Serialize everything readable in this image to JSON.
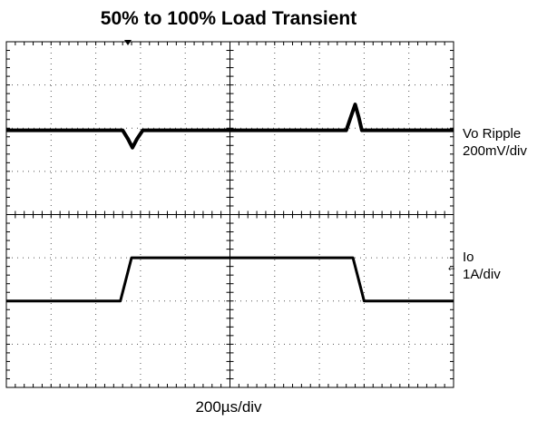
{
  "chart_data": {
    "type": "line",
    "title": "50% to 100% Load Transient",
    "xlabel": "200µs/div",
    "grid": true,
    "divisions": {
      "x": 10,
      "y": 8
    },
    "xlim": [
      0,
      10
    ],
    "ylim": [
      0,
      8
    ],
    "series": [
      {
        "name": "Vo Ripple",
        "scale_label": "200mV/div",
        "x": [
          0,
          2.6,
          2.72,
          2.82,
          2.92,
          3.05,
          3.2,
          7.6,
          7.7,
          7.8,
          7.88,
          7.95,
          8.05,
          10
        ],
        "y": [
          5.95,
          5.95,
          5.75,
          5.55,
          5.75,
          5.95,
          5.95,
          5.95,
          6.25,
          6.55,
          6.25,
          5.95,
          5.95,
          5.95
        ]
      },
      {
        "name": "Io",
        "scale_label": "1A/div",
        "x": [
          0,
          2.55,
          2.8,
          7.75,
          8.0,
          10
        ],
        "y": [
          2.0,
          2.0,
          3.0,
          3.0,
          2.0,
          2.0
        ]
      }
    ]
  }
}
